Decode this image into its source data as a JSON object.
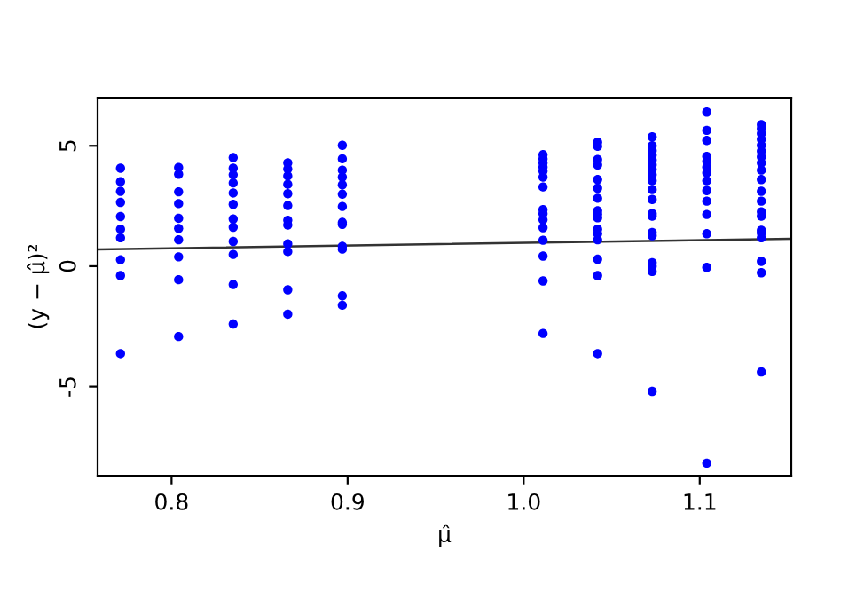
{
  "chart_data": {
    "type": "scatter",
    "xlabel": "μ̂",
    "ylabel": "(y − μ̂)²",
    "xlim": [
      0.758,
      1.152
    ],
    "ylim": [
      -8.7,
      7.0
    ],
    "xticks": [
      0.8,
      0.9,
      {
        "value": 1.0,
        "label": "1.0"
      },
      1.1
    ],
    "yticks": [
      -5,
      0,
      5
    ],
    "grid": false,
    "series": [
      {
        "color": "#0000ff",
        "marker": "circle",
        "x": [
          0.771,
          0.771,
          0.771,
          0.771,
          0.771,
          0.771,
          0.771,
          0.771,
          0.771,
          0.771,
          0.804,
          0.804,
          0.804,
          0.804,
          0.804,
          0.804,
          0.804,
          0.804,
          0.804,
          0.804,
          0.835,
          0.835,
          0.835,
          0.835,
          0.835,
          0.835,
          0.835,
          0.835,
          0.835,
          0.835,
          0.835,
          0.835,
          0.866,
          0.866,
          0.866,
          0.866,
          0.866,
          0.866,
          0.866,
          0.866,
          0.866,
          0.866,
          0.866,
          0.866,
          0.897,
          0.897,
          0.897,
          0.897,
          0.897,
          0.897,
          0.897,
          0.897,
          0.897,
          0.897,
          0.897,
          0.897,
          0.897,
          1.011,
          1.011,
          1.011,
          1.011,
          1.011,
          1.011,
          1.011,
          1.011,
          1.011,
          1.011,
          1.011,
          1.011,
          1.011,
          1.011,
          1.011,
          1.042,
          1.042,
          1.042,
          1.042,
          1.042,
          1.042,
          1.042,
          1.042,
          1.042,
          1.042,
          1.042,
          1.042,
          1.042,
          1.042,
          1.042,
          1.042,
          1.073,
          1.073,
          1.073,
          1.073,
          1.073,
          1.073,
          1.073,
          1.073,
          1.073,
          1.073,
          1.073,
          1.073,
          1.073,
          1.073,
          1.073,
          1.073,
          1.073,
          1.073,
          1.073,
          1.104,
          1.104,
          1.104,
          1.104,
          1.104,
          1.104,
          1.104,
          1.104,
          1.104,
          1.104,
          1.104,
          1.104,
          1.104,
          1.104,
          1.135,
          1.135,
          1.135,
          1.135,
          1.135,
          1.135,
          1.135,
          1.135,
          1.135,
          1.135,
          1.135,
          1.135,
          1.135,
          1.135,
          1.135,
          1.135,
          1.135,
          1.135,
          1.135,
          1.135
        ],
        "values": [
          4.07,
          3.51,
          3.11,
          2.65,
          2.06,
          1.54,
          1.18,
          0.27,
          -0.39,
          -3.63,
          4.1,
          3.82,
          3.09,
          2.6,
          1.99,
          1.57,
          1.1,
          0.39,
          -0.56,
          -2.92,
          4.51,
          4.07,
          3.8,
          3.46,
          3.04,
          2.57,
          1.96,
          1.62,
          1.03,
          0.49,
          -0.76,
          -2.4,
          4.29,
          4.04,
          3.75,
          3.4,
          3.01,
          2.52,
          1.91,
          1.71,
          0.93,
          0.61,
          -0.98,
          -1.99,
          5.02,
          4.46,
          3.99,
          3.7,
          3.38,
          2.99,
          2.48,
          1.82,
          1.74,
          0.83,
          0.71,
          -1.23,
          -1.62,
          4.63,
          4.46,
          4.29,
          4.12,
          3.95,
          3.7,
          3.29,
          2.35,
          2.18,
          1.93,
          1.6,
          1.08,
          0.42,
          -0.61,
          -2.79,
          5.15,
          4.98,
          4.43,
          4.21,
          3.6,
          3.24,
          2.82,
          2.3,
          2.16,
          2.01,
          1.54,
          1.35,
          1.1,
          0.29,
          -0.39,
          -3.63,
          5.37,
          5.0,
          4.8,
          4.61,
          4.41,
          4.21,
          4.02,
          3.8,
          3.55,
          3.18,
          2.77,
          2.18,
          2.08,
          1.4,
          1.27,
          0.15,
          0.0,
          -0.22,
          -5.2,
          6.4,
          5.64,
          5.22,
          4.56,
          4.36,
          4.12,
          3.88,
          3.55,
          3.14,
          2.7,
          2.15,
          1.35,
          -0.05,
          -8.18,
          5.88,
          5.71,
          5.51,
          5.27,
          5.02,
          4.78,
          4.54,
          4.29,
          3.99,
          3.6,
          3.11,
          2.7,
          2.26,
          2.08,
          1.49,
          1.38,
          1.18,
          0.2,
          -0.27,
          -4.39
        ]
      },
      {
        "type": "line",
        "color": "#333333",
        "marker": "none",
        "x": [
          0.758,
          1.152
        ],
        "values": [
          0.7,
          1.14
        ]
      }
    ]
  }
}
